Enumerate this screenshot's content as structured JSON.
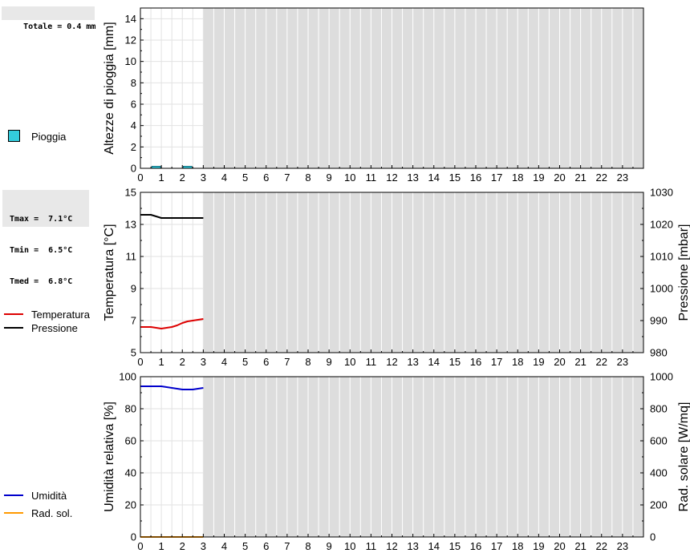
{
  "info_rain": "Totale = 0.4 mm",
  "info_temp": [
    "Tmax =  7.1°C",
    "Tmin =  6.5°C",
    "Tmed =  6.8°C"
  ],
  "legend_rain": {
    "label": "Pioggia",
    "color": "#33ccdd"
  },
  "legend_temp": [
    {
      "label": "Temperatura",
      "color": "#dd0000"
    },
    {
      "label": "Pressione",
      "color": "#000000"
    }
  ],
  "legend_hum": [
    {
      "label": "Umidità",
      "color": "#0000cc"
    },
    {
      "label": "Rad. sol.",
      "color": "#ff9900"
    }
  ],
  "colors": {
    "shade": "#dddddd",
    "grid": "#cccccc",
    "rain": "#33ccdd",
    "temp": "#dd0000",
    "press": "#000000",
    "hum": "#0000cc",
    "rad": "#ff9900"
  },
  "chart_data": [
    {
      "type": "bar",
      "ylabel": "Altezze di pioggia [mm]",
      "ylim": [
        0,
        15
      ],
      "yticks": [
        0,
        2,
        4,
        6,
        8,
        10,
        12,
        14
      ],
      "xlim": [
        0,
        24
      ],
      "xticks": [
        0,
        1,
        2,
        3,
        4,
        5,
        6,
        7,
        8,
        9,
        10,
        11,
        12,
        13,
        14,
        15,
        16,
        17,
        18,
        19,
        20,
        21,
        22,
        23
      ],
      "data_until_hour": 3,
      "bars": [
        {
          "x_start": 0.5,
          "x_end": 1.0,
          "value": 0.2,
          "series": "Pioggia"
        },
        {
          "x_start": 2.0,
          "x_end": 2.5,
          "value": 0.2,
          "series": "Pioggia"
        }
      ]
    },
    {
      "type": "line",
      "ylabel": "Temperatura [°C]",
      "y2label": "Pressione [mbar]",
      "ylim": [
        5,
        15
      ],
      "yticks": [
        5,
        7,
        9,
        11,
        13,
        15
      ],
      "y2lim": [
        980,
        1030
      ],
      "y2ticks": [
        980,
        990,
        1000,
        1010,
        1020,
        1030
      ],
      "xlim": [
        0,
        24
      ],
      "xticks": [
        0,
        1,
        2,
        3,
        4,
        5,
        6,
        7,
        8,
        9,
        10,
        11,
        12,
        13,
        14,
        15,
        16,
        17,
        18,
        19,
        20,
        21,
        22,
        23
      ],
      "data_until_hour": 3,
      "series": [
        {
          "name": "Temperatura",
          "axis": "left",
          "x": [
            0,
            0.25,
            0.5,
            0.75,
            1.0,
            1.25,
            1.5,
            1.75,
            2.0,
            2.25,
            2.5,
            2.75,
            3.0
          ],
          "y": [
            6.6,
            6.6,
            6.6,
            6.55,
            6.5,
            6.55,
            6.6,
            6.7,
            6.85,
            6.95,
            7.0,
            7.05,
            7.1
          ]
        },
        {
          "name": "Pressione",
          "axis": "right",
          "x": [
            0,
            0.25,
            0.5,
            0.75,
            1.0,
            1.25,
            1.5,
            1.75,
            2.0,
            2.25,
            2.5,
            2.75,
            3.0
          ],
          "y": [
            1023,
            1023,
            1023,
            1022.5,
            1022,
            1022,
            1022,
            1022,
            1022,
            1022,
            1022,
            1022,
            1022
          ]
        }
      ]
    },
    {
      "type": "line",
      "ylabel": "Umidità relativa [%]",
      "y2label": "Rad. solare [W/mq]",
      "ylim": [
        0,
        100
      ],
      "yticks": [
        0,
        20,
        40,
        60,
        80,
        100
      ],
      "y2lim": [
        0,
        1000
      ],
      "y2ticks": [
        0,
        200,
        400,
        600,
        800,
        1000
      ],
      "xlim": [
        0,
        24
      ],
      "xticks": [
        0,
        1,
        2,
        3,
        4,
        5,
        6,
        7,
        8,
        9,
        10,
        11,
        12,
        13,
        14,
        15,
        16,
        17,
        18,
        19,
        20,
        21,
        22,
        23
      ],
      "data_until_hour": 3,
      "series": [
        {
          "name": "Umidità",
          "axis": "left",
          "x": [
            0,
            0.25,
            0.5,
            0.75,
            1.0,
            1.25,
            1.5,
            1.75,
            2.0,
            2.25,
            2.5,
            2.75,
            3.0
          ],
          "y": [
            94,
            94,
            94,
            94,
            94,
            93.5,
            93,
            92.5,
            92,
            92,
            92,
            92.5,
            93
          ]
        },
        {
          "name": "Rad. sol.",
          "axis": "right",
          "x": [
            0,
            0.5,
            1.0,
            1.5,
            2.0,
            2.5,
            3.0
          ],
          "y": [
            0,
            0,
            0,
            0,
            0,
            0,
            0
          ]
        }
      ]
    }
  ]
}
